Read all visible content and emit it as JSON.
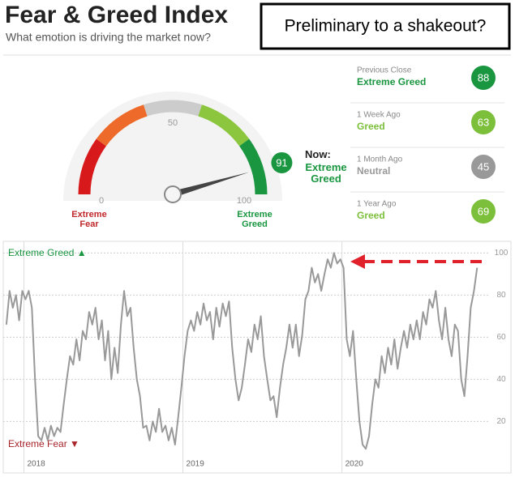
{
  "header": {
    "title": "Fear & Greed Index",
    "subtitle": "What emotion is driving the market now?"
  },
  "annotation": "Preliminary to a shakeout?",
  "gauge": {
    "value": 91,
    "range": [
      0,
      100
    ],
    "ticks": [
      0,
      50,
      100
    ],
    "now_label": "Now:",
    "status": "Extreme Greed",
    "min_label": "Extreme Fear",
    "max_label": "Extreme Greed",
    "color": "#1a9641"
  },
  "history": [
    {
      "label": "Previous Close",
      "status": "Extreme Greed",
      "value": 88,
      "color": "#1a9641"
    },
    {
      "label": "1 Week Ago",
      "status": "Greed",
      "value": 63,
      "color": "#7cbf3a"
    },
    {
      "label": "1 Month Ago",
      "status": "Neutral",
      "value": 45,
      "color": "#999999"
    },
    {
      "label": "1 Year Ago",
      "status": "Greed",
      "value": 69,
      "color": "#7cbf3a"
    }
  ],
  "chart_data": {
    "type": "line",
    "color": "#999999",
    "greed_label": "Extreme Greed ▲",
    "fear_label": "Extreme Fear ▼",
    "xlim": [
      2017.87,
      2020.92
    ],
    "xticks": [
      2018,
      2019,
      2020
    ],
    "ylim": [
      4,
      104
    ],
    "yticks": [
      20,
      40,
      60,
      80,
      100
    ],
    "grid": true,
    "x": [
      2017.89,
      2017.91,
      2017.93,
      2017.95,
      2017.97,
      2017.99,
      2018.01,
      2018.03,
      2018.05,
      2018.07,
      2018.09,
      2018.11,
      2018.13,
      2018.15,
      2018.17,
      2018.19,
      2018.21,
      2018.23,
      2018.25,
      2018.27,
      2018.29,
      2018.31,
      2018.33,
      2018.35,
      2018.37,
      2018.39,
      2018.41,
      2018.43,
      2018.45,
      2018.47,
      2018.49,
      2018.51,
      2018.53,
      2018.55,
      2018.57,
      2018.59,
      2018.61,
      2018.63,
      2018.65,
      2018.67,
      2018.69,
      2018.71,
      2018.73,
      2018.75,
      2018.77,
      2018.79,
      2018.81,
      2018.83,
      2018.85,
      2018.87,
      2018.89,
      2018.91,
      2018.93,
      2018.95,
      2018.97,
      2018.99,
      2019.01,
      2019.03,
      2019.05,
      2019.07,
      2019.09,
      2019.11,
      2019.13,
      2019.15,
      2019.17,
      2019.19,
      2019.21,
      2019.23,
      2019.25,
      2019.27,
      2019.29,
      2019.31,
      2019.33,
      2019.35,
      2019.37,
      2019.39,
      2019.41,
      2019.43,
      2019.45,
      2019.47,
      2019.49,
      2019.51,
      2019.53,
      2019.55,
      2019.57,
      2019.59,
      2019.61,
      2019.63,
      2019.65,
      2019.67,
      2019.69,
      2019.71,
      2019.73,
      2019.75,
      2019.77,
      2019.79,
      2019.81,
      2019.83,
      2019.85,
      2019.87,
      2019.89,
      2019.91,
      2019.93,
      2019.95,
      2019.97,
      2019.99,
      2020.01,
      2020.03,
      2020.05,
      2020.07,
      2020.09,
      2020.11,
      2020.13,
      2020.15,
      2020.17,
      2020.19,
      2020.21,
      2020.23,
      2020.25,
      2020.27,
      2020.29,
      2020.31,
      2020.33,
      2020.35,
      2020.37,
      2020.39,
      2020.41,
      2020.43,
      2020.45,
      2020.47,
      2020.49,
      2020.51,
      2020.53,
      2020.55,
      2020.57,
      2020.59,
      2020.61,
      2020.63,
      2020.65,
      2020.67,
      2020.69,
      2020.71,
      2020.73,
      2020.75,
      2020.77,
      2020.79,
      2020.81,
      2020.83,
      2020.85
    ],
    "values": [
      66,
      82,
      74,
      80,
      68,
      82,
      78,
      82,
      74,
      40,
      13,
      11,
      17,
      11,
      18,
      13,
      17,
      15,
      28,
      40,
      51,
      47,
      59,
      49,
      63,
      59,
      72,
      66,
      74,
      59,
      68,
      49,
      63,
      40,
      55,
      43,
      66,
      82,
      70,
      74,
      55,
      40,
      32,
      17,
      18,
      11,
      20,
      15,
      26,
      15,
      18,
      11,
      17,
      9,
      22,
      36,
      51,
      63,
      68,
      63,
      72,
      66,
      76,
      68,
      72,
      59,
      74,
      65,
      76,
      70,
      77,
      55,
      40,
      30,
      36,
      47,
      59,
      53,
      66,
      59,
      70,
      51,
      40,
      30,
      32,
      22,
      36,
      47,
      55,
      66,
      55,
      66,
      51,
      61,
      78,
      82,
      93,
      86,
      90,
      82,
      90,
      97,
      93,
      100,
      95,
      97,
      93,
      59,
      51,
      63,
      40,
      20,
      9,
      7,
      13,
      28,
      40,
      36,
      51,
      43,
      55,
      47,
      59,
      45,
      55,
      63,
      55,
      66,
      59,
      68,
      59,
      72,
      66,
      78,
      74,
      82,
      68,
      59,
      74,
      59,
      51,
      66,
      63,
      40,
      32,
      51,
      74,
      82,
      93
    ]
  }
}
